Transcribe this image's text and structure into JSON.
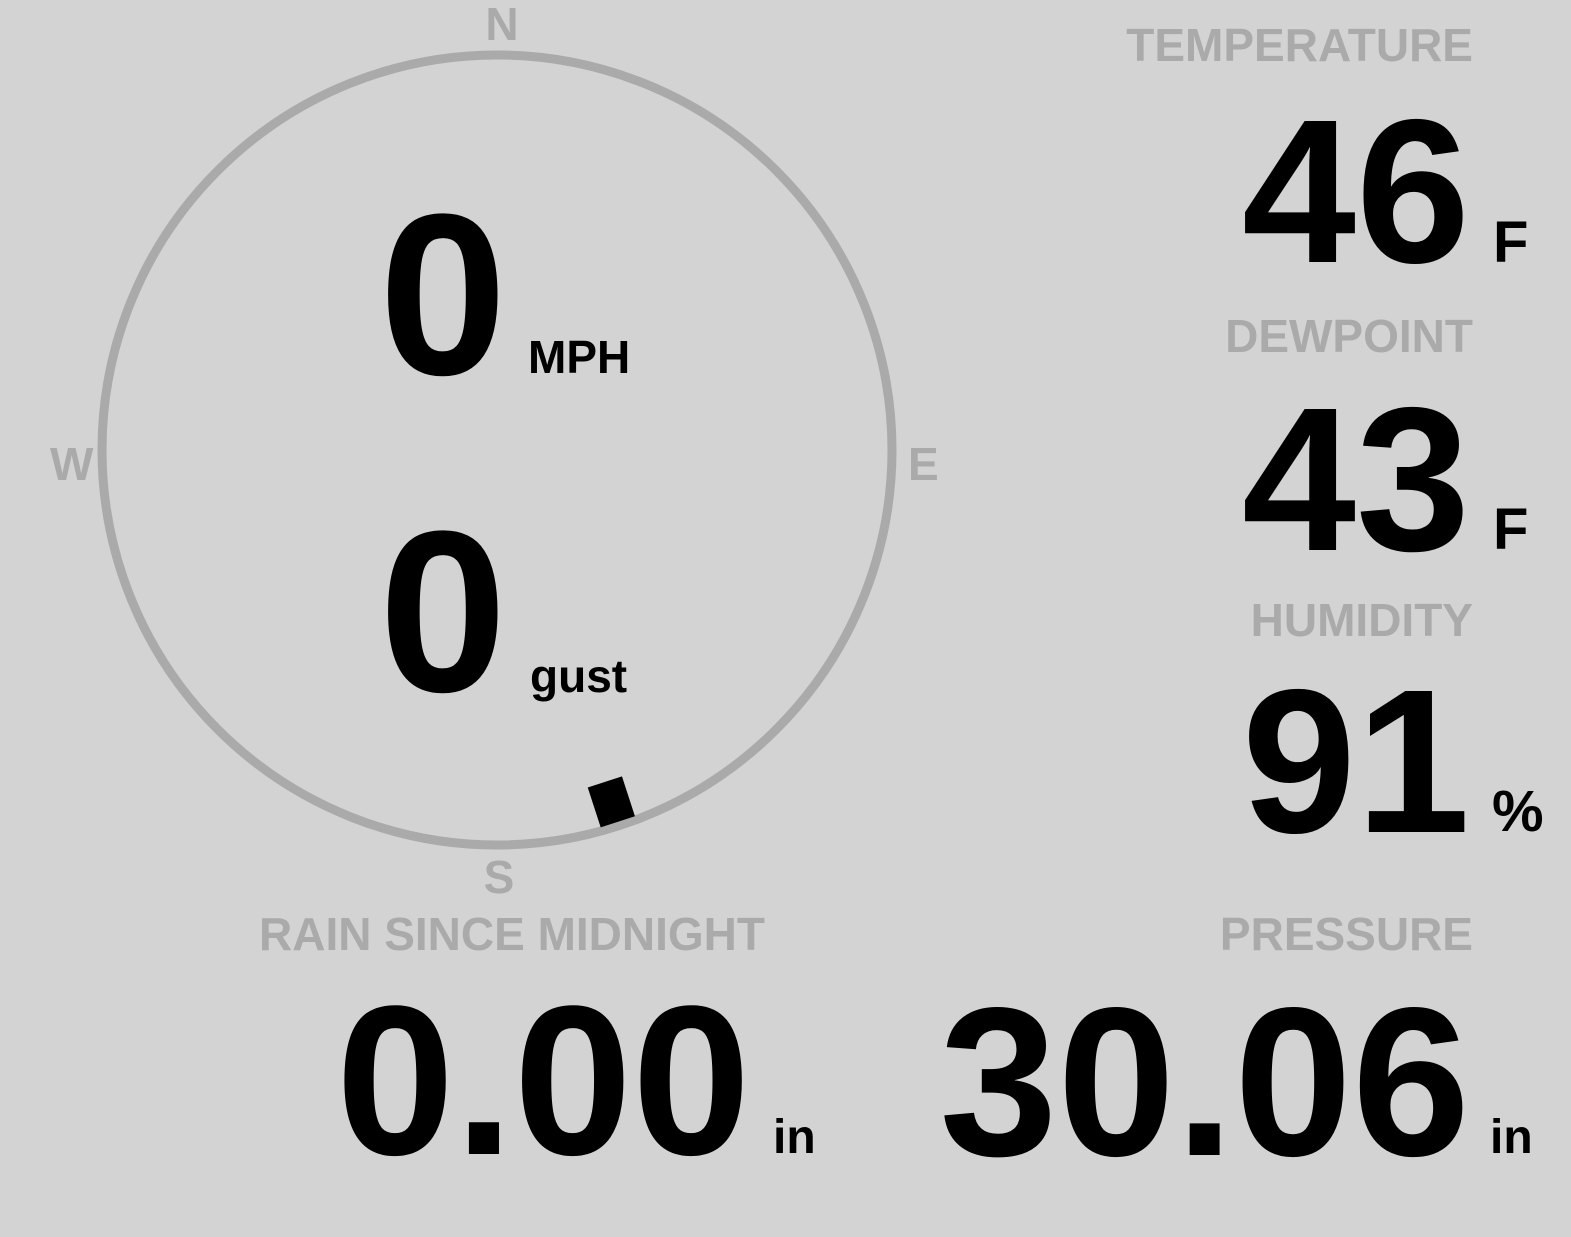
{
  "colors": {
    "background": "#d3d3d3",
    "label": "#aaaaaa",
    "value": "#000000",
    "compass_ring": "#aaaaaa",
    "wind_indicator": "#000000"
  },
  "compass": {
    "north": "N",
    "south": "S",
    "east": "E",
    "west": "W",
    "wind_direction_deg": 162
  },
  "wind": {
    "speed": "0",
    "speed_unit": "MPH",
    "gust": "0",
    "gust_unit": "gust"
  },
  "temperature": {
    "label": "TEMPERATURE",
    "value": "46",
    "unit": "F"
  },
  "dewpoint": {
    "label": "DEWPOINT",
    "value": "43",
    "unit": "F"
  },
  "humidity": {
    "label": "HUMIDITY",
    "value": "91",
    "unit": "%"
  },
  "rain": {
    "label": "RAIN SINCE MIDNIGHT",
    "value": "0.00",
    "unit": "in"
  },
  "pressure": {
    "label": "PRESSURE",
    "value": "30.06",
    "unit": "in"
  }
}
